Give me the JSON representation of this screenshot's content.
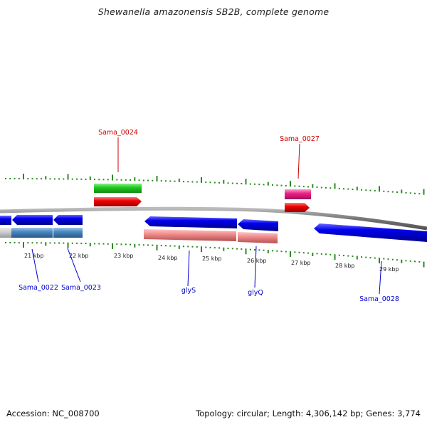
{
  "header": {
    "title": "Shewanella amazonensis SB2B, complete genome"
  },
  "footer": {
    "accession": "Accession: NC_008700",
    "summary": "Topology: circular; Length: 4,306,142 bp; Genes: 3,774"
  },
  "colors": {
    "backbone": "#888888",
    "tick": "#2a8a1f",
    "label_forward": "#cc0000",
    "label_reverse": "#0000cc",
    "gene_blue": "#0000ee",
    "gene_steel": "#4a88c0",
    "gene_red": "#ee0000",
    "gene_green": "#22cc22",
    "gene_pink": "#ee2288",
    "gene_salmon": "#ee8888",
    "gene_gray": "#c8c8c8"
  },
  "scale": {
    "tick_labels": [
      "21 kbp",
      "22 kbp",
      "23 kbp",
      "24 kbp",
      "25 kbp",
      "26 kbp",
      "27 kbp",
      "28 kbp",
      "29 kbp"
    ]
  },
  "gene_labels": [
    {
      "id": "sama-0024",
      "text": "Sama_0024",
      "strand": "forward"
    },
    {
      "id": "sama-0027",
      "text": "Sama_0027",
      "strand": "forward"
    },
    {
      "id": "sama-0022",
      "text": "Sama_0022",
      "strand": "reverse"
    },
    {
      "id": "sama-0023",
      "text": "Sama_0023",
      "strand": "reverse"
    },
    {
      "id": "glys",
      "text": "glyS",
      "strand": "reverse"
    },
    {
      "id": "glyq",
      "text": "glyQ",
      "strand": "reverse"
    },
    {
      "id": "sama-0028",
      "text": "Sama_0028",
      "strand": "reverse"
    }
  ]
}
